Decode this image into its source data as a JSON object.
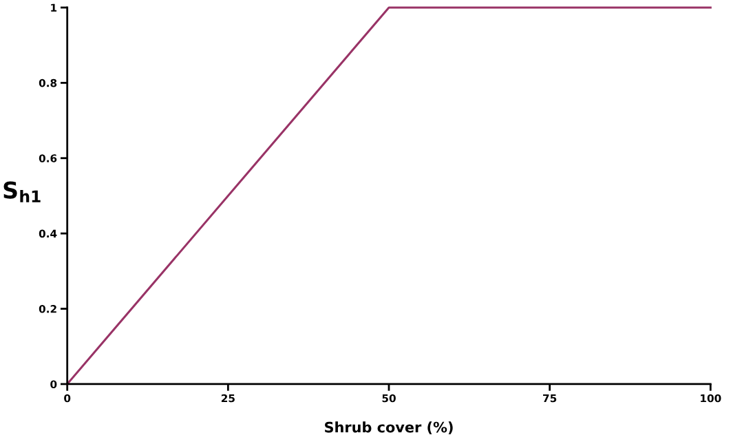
{
  "chart_data": {
    "type": "line",
    "xlabel": "Shrub cover (%)",
    "ylabel": "S$_{h1}$",
    "x": [
      0,
      50,
      100
    ],
    "series": [
      {
        "color": "#993366",
        "values": [
          0,
          1,
          1
        ]
      }
    ],
    "xlim": [
      0,
      100
    ],
    "xticks": [
      0,
      25,
      50,
      75,
      100
    ],
    "ylim": [
      0,
      1
    ],
    "yticks": [
      0,
      0.2,
      0.4,
      0.6,
      0.8,
      1
    ],
    "grid": false,
    "marker": "none",
    "line_style": "solid"
  }
}
